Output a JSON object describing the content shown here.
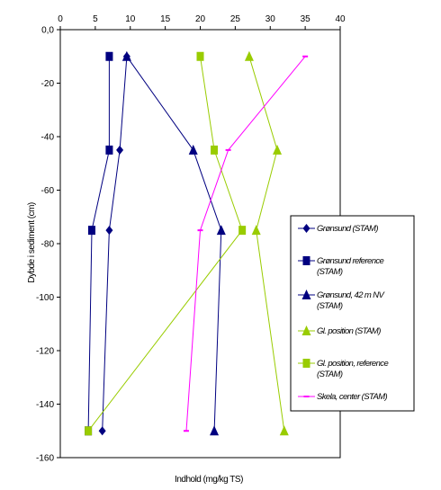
{
  "chart_data": {
    "type": "line",
    "title": "",
    "xlabel": "Indhold (mg/kg TS)",
    "ylabel": "Dybde i sediment (cm)",
    "xlim": [
      0,
      40
    ],
    "ylim": [
      -160,
      0
    ],
    "x_ticks": [
      "0",
      "5",
      "10",
      "15",
      "20",
      "25",
      "30",
      "35",
      "40"
    ],
    "y_ticks": [
      "0,0",
      "-20",
      "-40",
      "-60",
      "-80",
      "-100",
      "-120",
      "-140",
      "-160"
    ],
    "x_tick_values": [
      0,
      5,
      10,
      15,
      20,
      25,
      30,
      35,
      40
    ],
    "y_tick_values": [
      0,
      -20,
      -40,
      -60,
      -80,
      -100,
      -120,
      -140,
      -160
    ],
    "grid": false,
    "legend_position": "right",
    "series": [
      {
        "name": "Grønsund (STAM)",
        "color": "#000080",
        "marker": "diamond",
        "points": [
          {
            "x": 9.5,
            "y": -10
          },
          {
            "x": 8.5,
            "y": -45
          },
          {
            "x": 7,
            "y": -75
          },
          {
            "x": 6,
            "y": -150
          }
        ]
      },
      {
        "name": "Grønsund reference (STAM)",
        "color": "#000080",
        "marker": "square",
        "points": [
          {
            "x": 7,
            "y": -10
          },
          {
            "x": 7,
            "y": -45
          },
          {
            "x": 4.5,
            "y": -75
          },
          {
            "x": 4,
            "y": -150
          }
        ]
      },
      {
        "name": "Grønsund, 42 m NV (STAM)",
        "color": "#000080",
        "marker": "triangle",
        "points": [
          {
            "x": 9.5,
            "y": -10
          },
          {
            "x": 19,
            "y": -45
          },
          {
            "x": 23,
            "y": -75
          },
          {
            "x": 22,
            "y": -150
          }
        ]
      },
      {
        "name": "Gl. position (STAM)",
        "color": "#99cc00",
        "marker": "triangle",
        "points": [
          {
            "x": 27,
            "y": -10
          },
          {
            "x": 31,
            "y": -45
          },
          {
            "x": 28,
            "y": -75
          },
          {
            "x": 32,
            "y": -150
          }
        ]
      },
      {
        "name": "Gl. position, reference (STAM)",
        "color": "#99cc00",
        "marker": "square",
        "points": [
          {
            "x": 20,
            "y": -10
          },
          {
            "x": 22,
            "y": -45
          },
          {
            "x": 26,
            "y": -75
          },
          {
            "x": 4,
            "y": -150
          }
        ]
      },
      {
        "name": "Skela, center (STAM)",
        "color": "#ff00ff",
        "marker": "dash",
        "points": [
          {
            "x": 35,
            "y": -10
          },
          {
            "x": 24,
            "y": -45
          },
          {
            "x": 20,
            "y": -75
          },
          {
            "x": 18,
            "y": -150
          }
        ]
      }
    ]
  }
}
